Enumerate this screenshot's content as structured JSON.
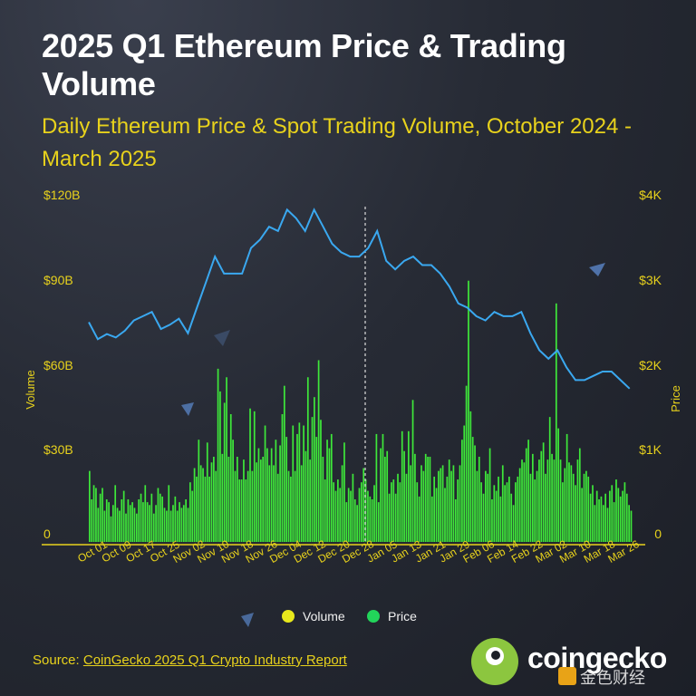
{
  "title": "2025 Q1 Ethereum Price & Trading Volume",
  "subtitle": "Daily Ethereum Price & Spot Trading Volume, October 2024 - March 2025",
  "source_label": "Source:",
  "source_link": "CoinGecko 2025 Q1 Crypto Industry Report",
  "brand_name": "coingecko",
  "watermark": "金色财经",
  "colors": {
    "volume_bar": "#3ee83a",
    "price_line": "#3aa8f0",
    "axis_text": "#e8d21c",
    "legend_volume": "#e8e81c",
    "legend_price": "#22d45a"
  },
  "chart_data": {
    "type": "bar+line",
    "title": "2025 Q1 Ethereum Price & Trading Volume",
    "subtitle": "Daily Ethereum Price & Spot Trading Volume, October 2024 - March 2025",
    "ylabel_left": "Volume",
    "ylabel_right": "Price",
    "left_ticks": [
      "0",
      "$30B",
      "$60B",
      "$90B",
      "$120B"
    ],
    "left_ylim": [
      0,
      120
    ],
    "right_ticks": [
      "0",
      "$1K",
      "$2K",
      "$3K",
      "$4K"
    ],
    "right_ylim": [
      0,
      4000
    ],
    "x_ticks": [
      "Oct 01",
      "Oct 09",
      "Oct 17",
      "Oct 25",
      "Nov 02",
      "Nov 10",
      "Nov 18",
      "Nov 26",
      "Dec 04",
      "Dec 12",
      "Dec 20",
      "Dec 28",
      "Jan 05",
      "Jan 13",
      "Jan 21",
      "Jan 29",
      "Feb 06",
      "Feb 14",
      "Feb 22",
      "Mar 02",
      "Mar 10",
      "Mar 18",
      "Mar 26"
    ],
    "legend": [
      {
        "name": "Volume"
      },
      {
        "name": "Price"
      }
    ],
    "legend_position": "bottom",
    "annotation": "dashed vertical line at Jan 01 2025",
    "series": [
      {
        "name": "Volume",
        "unit": "$B",
        "values": [
          25,
          15,
          20,
          19,
          12,
          17,
          19,
          11,
          15,
          14,
          9,
          13,
          20,
          12,
          11,
          15,
          18,
          10,
          15,
          13,
          14,
          12,
          10,
          15,
          17,
          14,
          20,
          14,
          13,
          17,
          10,
          13,
          19,
          17,
          16,
          12,
          11,
          20,
          11,
          13,
          16,
          11,
          14,
          12,
          13,
          15,
          12,
          21,
          18,
          26,
          23,
          36,
          27,
          26,
          23,
          35,
          23,
          28,
          30,
          25,
          61,
          53,
          31,
          49,
          58,
          30,
          45,
          36,
          25,
          30,
          22,
          22,
          29,
          22,
          25,
          47,
          25,
          46,
          28,
          33,
          29,
          30,
          41,
          33,
          27,
          33,
          27,
          36,
          24,
          34,
          45,
          55,
          37,
          25,
          23,
          41,
          25,
          38,
          42,
          27,
          41,
          32,
          58,
          29,
          44,
          51,
          37,
          64,
          43,
          30,
          22,
          36,
          33,
          38,
          21,
          18,
          22,
          19,
          27,
          35,
          14,
          19,
          18,
          24,
          15,
          13,
          19,
          21,
          26,
          22,
          18,
          16,
          15,
          20,
          38,
          14,
          33,
          38,
          30,
          32,
          17,
          21,
          22,
          17,
          24,
          21,
          39,
          32,
          24,
          39,
          27,
          50,
          31,
          21,
          16,
          27,
          25,
          31,
          30,
          30,
          16,
          23,
          19,
          25,
          26,
          27,
          19,
          23,
          29,
          25,
          27,
          15,
          22,
          27,
          36,
          41,
          55,
          92,
          46,
          37,
          34,
          25,
          30,
          21,
          17,
          25,
          24,
          33,
          15,
          20,
          18,
          23,
          16,
          27,
          20,
          21,
          23,
          17,
          13,
          21,
          23,
          26,
          29,
          28,
          33,
          36,
          24,
          31,
          22,
          25,
          29,
          32,
          35,
          24,
          29,
          44,
          31,
          29,
          84,
          40,
          29,
          21,
          26,
          38,
          28,
          27,
          24,
          20,
          29,
          33,
          19,
          24,
          25,
          23,
          17,
          20,
          13,
          18,
          15,
          16,
          13,
          17,
          12,
          18,
          20,
          14,
          22,
          19,
          16,
          18,
          21,
          17,
          13,
          11
        ],
        "x_range": [
          "2024-10-01",
          "2025-03-31"
        ]
      },
      {
        "name": "Price",
        "unit": "USD",
        "x": [
          "2024-10-01",
          "2024-10-04",
          "2024-10-07",
          "2024-10-10",
          "2024-10-13",
          "2024-10-16",
          "2024-10-19",
          "2024-10-22",
          "2024-10-25",
          "2024-10-28",
          "2024-10-31",
          "2024-11-03",
          "2024-11-06",
          "2024-11-09",
          "2024-11-12",
          "2024-11-15",
          "2024-11-18",
          "2024-11-21",
          "2024-11-24",
          "2024-11-27",
          "2024-11-30",
          "2024-12-03",
          "2024-12-06",
          "2024-12-09",
          "2024-12-12",
          "2024-12-15",
          "2024-12-18",
          "2024-12-21",
          "2024-12-24",
          "2024-12-27",
          "2024-12-30",
          "2025-01-02",
          "2025-01-05",
          "2025-01-08",
          "2025-01-11",
          "2025-01-14",
          "2025-01-17",
          "2025-01-20",
          "2025-01-23",
          "2025-01-26",
          "2025-01-29",
          "2025-02-01",
          "2025-02-04",
          "2025-02-07",
          "2025-02-10",
          "2025-02-13",
          "2025-02-16",
          "2025-02-19",
          "2025-02-22",
          "2025-02-25",
          "2025-02-28",
          "2025-03-03",
          "2025-03-06",
          "2025-03-09",
          "2025-03-12",
          "2025-03-15",
          "2025-03-18",
          "2025-03-21",
          "2025-03-24",
          "2025-03-27",
          "2025-03-30"
        ],
        "values": [
          2580,
          2380,
          2440,
          2400,
          2480,
          2600,
          2650,
          2700,
          2500,
          2550,
          2620,
          2450,
          2750,
          3050,
          3350,
          3150,
          3150,
          3150,
          3450,
          3550,
          3700,
          3650,
          3900,
          3800,
          3650,
          3900,
          3700,
          3500,
          3400,
          3350,
          3350,
          3450,
          3650,
          3300,
          3200,
          3300,
          3350,
          3250,
          3250,
          3150,
          3000,
          2800,
          2750,
          2650,
          2600,
          2700,
          2650,
          2650,
          2700,
          2450,
          2250,
          2150,
          2250,
          2050,
          1900,
          1900,
          1950,
          2000,
          2000,
          1900,
          1800
        ]
      }
    ]
  }
}
